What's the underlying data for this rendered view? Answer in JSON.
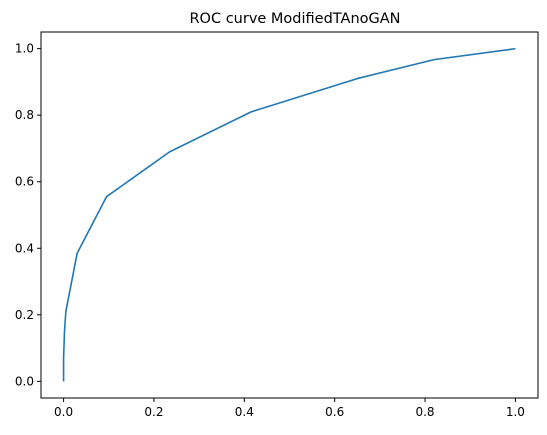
{
  "chart_data": {
    "type": "line",
    "title": "ROC curve ModifiedTAnoGAN",
    "xlabel": "",
    "ylabel": "",
    "xlim": [
      -0.05,
      1.05
    ],
    "ylim": [
      -0.05,
      1.05
    ],
    "xticks": [
      0.0,
      0.2,
      0.4,
      0.6,
      0.8,
      1.0
    ],
    "yticks": [
      0.0,
      0.2,
      0.4,
      0.6,
      0.8,
      1.0
    ],
    "xtick_labels": [
      "0.0",
      "0.2",
      "0.4",
      "0.6",
      "0.8",
      "1.0"
    ],
    "ytick_labels": [
      "0.0",
      "0.2",
      "0.4",
      "0.6",
      "0.8",
      "1.0"
    ],
    "grid": false,
    "series": [
      {
        "color": "#1f77b4",
        "x": [
          0.0,
          0.0,
          0.002,
          0.005,
          0.03,
          0.095,
          0.235,
          0.415,
          0.65,
          0.82,
          1.0
        ],
        "y": [
          0.0,
          0.07,
          0.15,
          0.21,
          0.385,
          0.555,
          0.69,
          0.81,
          0.91,
          0.967,
          1.0
        ]
      }
    ]
  }
}
